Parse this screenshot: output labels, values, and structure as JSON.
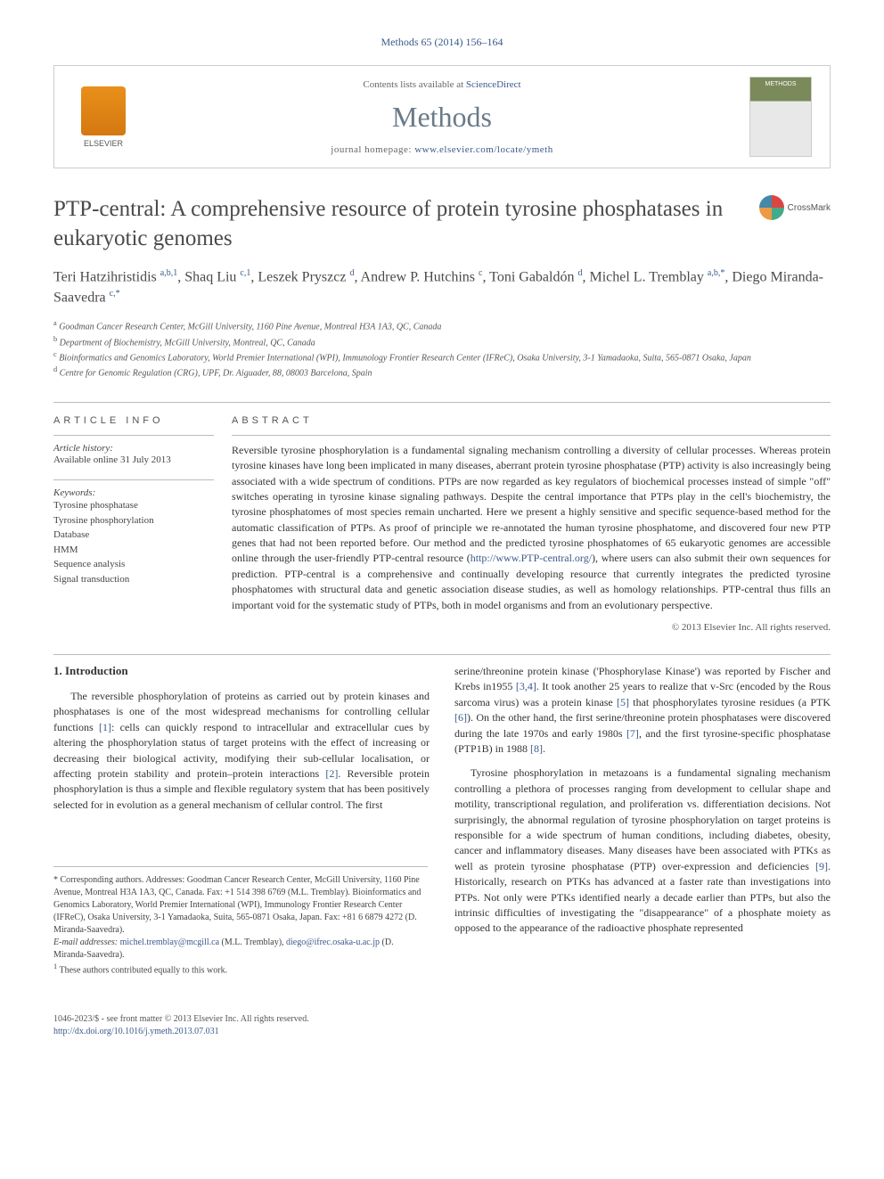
{
  "journal_ref": "Methods 65 (2014) 156–164",
  "header": {
    "elsevier": "ELSEVIER",
    "contents_prefix": "Contents lists available at ",
    "contents_link": "ScienceDirect",
    "journal_name": "Methods",
    "homepage_prefix": "journal homepage: ",
    "homepage_link": "www.elsevier.com/locate/ymeth"
  },
  "crossmark": "CrossMark",
  "title": "PTP-central: A comprehensive resource of protein tyrosine phosphatases in eukaryotic genomes",
  "authors_html": "Teri Hatzihristidis <sup>a,b,1</sup>, Shaq Liu <sup>c,1</sup>, Leszek Pryszcz <sup>d</sup>, Andrew P. Hutchins <sup>c</sup>, Toni Gabaldón <sup>d</sup>, Michel L. Tremblay <sup>a,b,*</sup>, Diego Miranda-Saavedra <sup>c,*</sup>",
  "affiliations": {
    "a": "Goodman Cancer Research Center, McGill University, 1160 Pine Avenue, Montreal H3A 1A3, QC, Canada",
    "b": "Department of Biochemistry, McGill University, Montreal, QC, Canada",
    "c": "Bioinformatics and Genomics Laboratory, World Premier International (WPI), Immunology Frontier Research Center (IFReC), Osaka University, 3-1 Yamadaoka, Suita, 565-0871 Osaka, Japan",
    "d": "Centre for Genomic Regulation (CRG), UPF, Dr. Aiguader, 88, 08003 Barcelona, Spain"
  },
  "article_info": {
    "header": "ARTICLE INFO",
    "history_label": "Article history:",
    "history_text": "Available online 31 July 2013",
    "keywords_label": "Keywords:",
    "keywords": [
      "Tyrosine phosphatase",
      "Tyrosine phosphorylation",
      "Database",
      "HMM",
      "Sequence analysis",
      "Signal transduction"
    ]
  },
  "abstract": {
    "header": "ABSTRACT",
    "text_before_link": "Reversible tyrosine phosphorylation is a fundamental signaling mechanism controlling a diversity of cellular processes. Whereas protein tyrosine kinases have long been implicated in many diseases, aberrant protein tyrosine phosphatase (PTP) activity is also increasingly being associated with a wide spectrum of conditions. PTPs are now regarded as key regulators of biochemical processes instead of simple \"off\" switches operating in tyrosine kinase signaling pathways. Despite the central importance that PTPs play in the cell's biochemistry, the tyrosine phosphatomes of most species remain uncharted. Here we present a highly sensitive and specific sequence-based method for the automatic classification of PTPs. As proof of principle we re-annotated the human tyrosine phosphatome, and discovered four new PTP genes that had not been reported before. Our method and the predicted tyrosine phosphatomes of 65 eukaryotic genomes are accessible online through the user-friendly PTP-central resource (",
    "link": "http://www.PTP-central.org/",
    "text_after_link": "), where users can also submit their own sequences for prediction. PTP-central is a comprehensive and continually developing resource that currently integrates the predicted tyrosine phosphatomes with structural data and genetic association disease studies, as well as homology relationships. PTP-central thus fills an important void for the systematic study of PTPs, both in model organisms and from an evolutionary perspective.",
    "copyright": "© 2013 Elsevier Inc. All rights reserved."
  },
  "body": {
    "section_heading": "1. Introduction",
    "col1_p1": "The reversible phosphorylation of proteins as carried out by protein kinases and phosphatases is one of the most widespread mechanisms for controlling cellular functions [1]: cells can quickly respond to intracellular and extracellular cues by altering the phosphorylation status of target proteins with the effect of increasing or decreasing their biological activity, modifying their sub-cellular localisation, or affecting protein stability and protein–protein interactions [2]. Reversible protein phosphorylation is thus a simple and flexible regulatory system that has been positively selected for in evolution as a general mechanism of cellular control. The first",
    "col2_p1": "serine/threonine protein kinase ('Phosphorylase Kinase') was reported by Fischer and Krebs in1955 [3,4]. It took another 25 years to realize that v-Src (encoded by the Rous sarcoma virus) was a protein kinase [5] that phosphorylates tyrosine residues (a PTK [6]). On the other hand, the first serine/threonine protein phosphatases were discovered during the late 1970s and early 1980s [7], and the first tyrosine-specific phosphatase (PTP1B) in 1988 [8].",
    "col2_p2": "Tyrosine phosphorylation in metazoans is a fundamental signaling mechanism controlling a plethora of processes ranging from development to cellular shape and motility, transcriptional regulation, and proliferation vs. differentiation decisions. Not surprisingly, the abnormal regulation of tyrosine phosphorylation on target proteins is responsible for a wide spectrum of human conditions, including diabetes, obesity, cancer and inflammatory diseases. Many diseases have been associated with PTKs as well as protein tyrosine phosphatase (PTP) over-expression and deficiencies [9]. Historically, research on PTKs has advanced at a faster rate than investigations into PTPs. Not only were PTKs identified nearly a decade earlier than PTPs, but also the intrinsic difficulties of investigating the \"disappearance\" of a phosphate moiety as opposed to the appearance of the radioactive phosphate represented"
  },
  "footnotes": {
    "corresponding": "* Corresponding authors. Addresses: Goodman Cancer Research Center, McGill University, 1160 Pine Avenue, Montreal H3A 1A3, QC, Canada. Fax: +1 514 398 6769 (M.L. Tremblay). Bioinformatics and Genomics Laboratory, World Premier International (WPI), Immunology Frontier Research Center (IFReC), Osaka University, 3-1 Yamadaoka, Suita, 565-0871 Osaka, Japan. Fax: +81 6 6879 4272 (D. Miranda-Saavedra).",
    "email_label": "E-mail addresses:",
    "email1": "michel.tremblay@mcgill.ca",
    "email1_who": " (M.L. Tremblay), ",
    "email2": "diego@ifrec.osaka-u.ac.jp",
    "email2_who": " (D. Miranda-Saavedra).",
    "equal": "These authors contributed equally to this work."
  },
  "bottom": {
    "line1": "1046-2023/$ - see front matter © 2013 Elsevier Inc. All rights reserved.",
    "doi": "http://dx.doi.org/10.1016/j.ymeth.2013.07.031"
  },
  "colors": {
    "link": "#3a5a8a",
    "text": "#333333",
    "muted": "#666666",
    "border": "#bbbbbb",
    "elsevier_orange": "#e8901a",
    "journal_grey": "#6a7a8a"
  }
}
